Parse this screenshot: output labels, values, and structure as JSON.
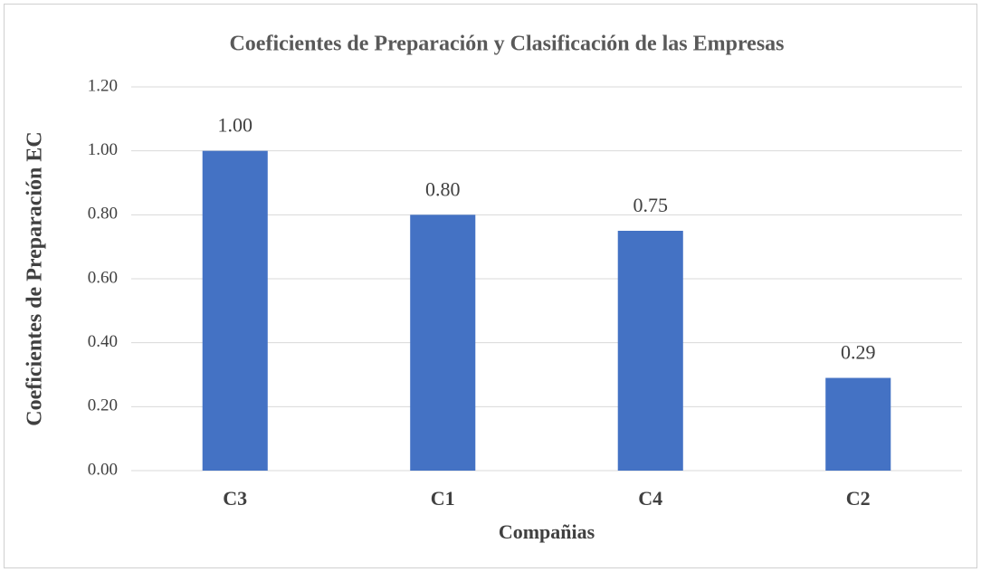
{
  "chart_data": {
    "type": "bar",
    "title": "Coeficientes de Preparación y Clasificación de las Empresas",
    "x_label": "Compañias",
    "y_label": "Coeficientes de Preparación EC",
    "categories": [
      "C3",
      "C1",
      "C4",
      "C2"
    ],
    "values": [
      1.0,
      0.8,
      0.75,
      0.29
    ],
    "value_labels": [
      "1.00",
      "0.80",
      "0.75",
      "0.29"
    ],
    "color": "#4472c4",
    "ylim": [
      0,
      1.2
    ],
    "yticks": [
      {
        "value": 0,
        "label": "0.00"
      },
      {
        "value": 0.2,
        "label": "0.20"
      },
      {
        "value": 0.4,
        "label": "0.40"
      },
      {
        "value": 0.6,
        "label": "0.60"
      },
      {
        "value": 0.8,
        "label": "0.80"
      },
      {
        "value": 1.0,
        "label": "1.00"
      },
      {
        "value": 1.2,
        "label": "1.20"
      }
    ],
    "grid": true
  }
}
